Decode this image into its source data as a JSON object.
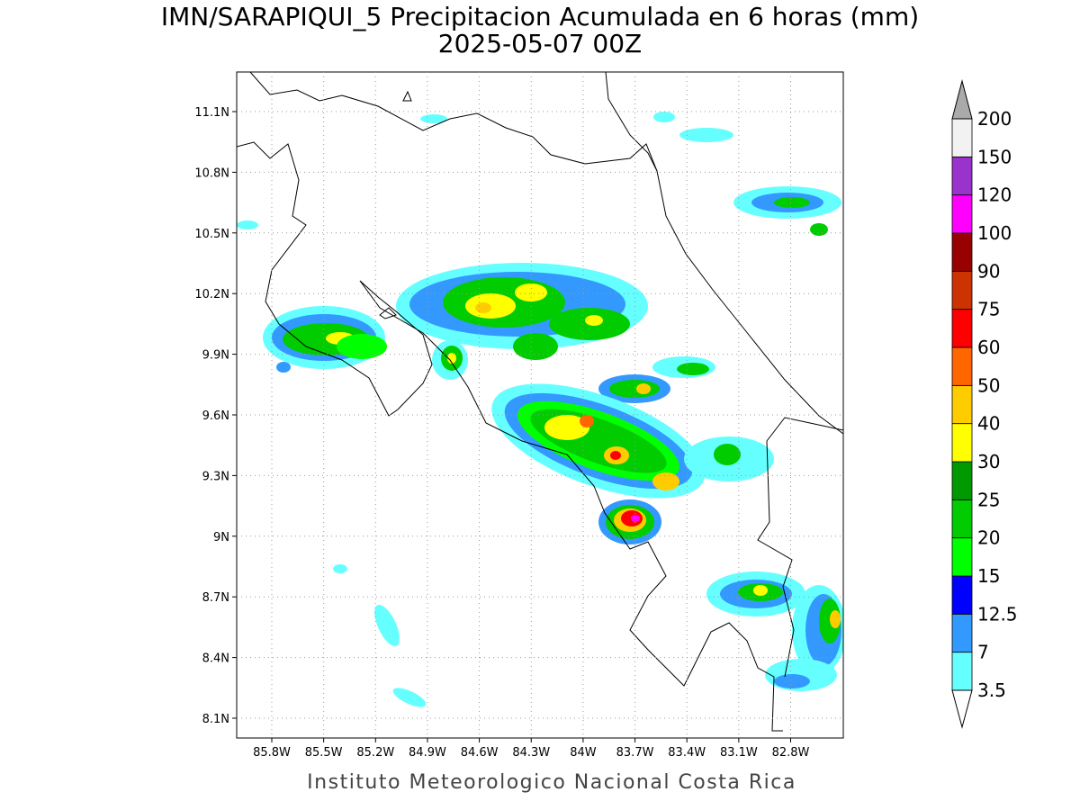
{
  "header": {
    "title": "IMN/SARAPIQUI_5 Precipitacion Acumulada en 6 horas (mm)",
    "subtitle": "2025-05-07 00Z"
  },
  "map": {
    "lat_labels": [
      "11.1N",
      "10.8N",
      "10.5N",
      "10.2N",
      "9.9N",
      "9.6N",
      "9.3N",
      "9N",
      "8.7N",
      "8.4N",
      "8.1N"
    ],
    "lon_labels": [
      "85.8W",
      "85.5W",
      "85.2W",
      "84.9W",
      "84.6W",
      "84.3W",
      "84W",
      "83.7W",
      "83.4W",
      "83.1W",
      "82.8W"
    ]
  },
  "colorbar": {
    "labels": [
      "3.5",
      "7",
      "12.5",
      "15",
      "20",
      "25",
      "30",
      "40",
      "50",
      "60",
      "75",
      "90",
      "100",
      "120",
      "150",
      "200"
    ],
    "colors": [
      "#66ffff",
      "#3399ff",
      "#0000ff",
      "#00ff00",
      "#00cc00",
      "#009900",
      "#ffff00",
      "#ffcc00",
      "#ff6600",
      "#ff0000",
      "#cc3300",
      "#990000",
      "#ff00ff",
      "#9933cc",
      "#f2f2f2"
    ],
    "below_color": "#ffffff",
    "above_color": "#aaaaaa"
  },
  "footer": "Instituto Meteorologico Nacional Costa Rica"
}
